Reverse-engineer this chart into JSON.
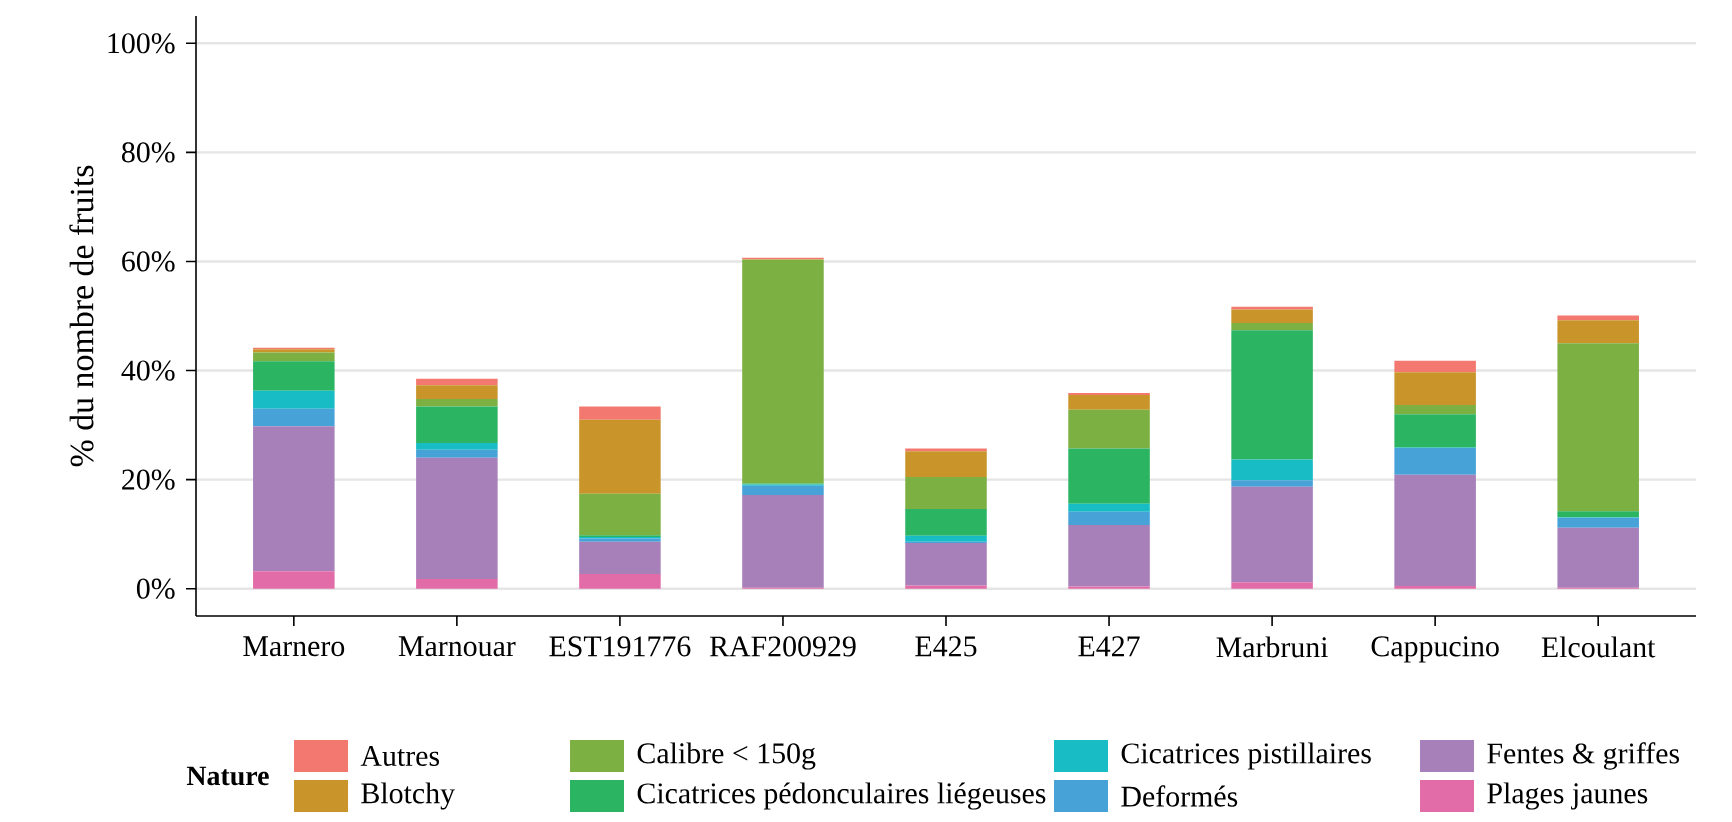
{
  "chart_data": {
    "type": "bar",
    "stacked": true,
    "ylabel": "% du nombre de fruits",
    "legend_title": "Nature",
    "legend": "bottom",
    "grid": "y",
    "categories": [
      "Marnero",
      "Marnouar",
      "EST191776",
      "RAF200929",
      "E425",
      "E427",
      "Marbruni",
      "Cappucino",
      "Elcoulant"
    ],
    "ylim": [
      -5,
      105
    ],
    "yticks": [
      {
        "value": 0,
        "label": "0%"
      },
      {
        "value": 20,
        "label": "20%"
      },
      {
        "value": 40,
        "label": "40%"
      },
      {
        "value": 60,
        "label": "60%"
      },
      {
        "value": 80,
        "label": "80%"
      },
      {
        "value": 100,
        "label": "100%"
      }
    ],
    "series": [
      {
        "name": "Plages jaunes",
        "color": "#e26ca7",
        "values": [
          3.2,
          1.8,
          2.7,
          0.2,
          0.6,
          0.4,
          1.2,
          0.5,
          0.2
        ]
      },
      {
        "name": "Fentes & griffes",
        "color": "#a780ba",
        "values": [
          26.6,
          22.2,
          5.9,
          17.0,
          7.8,
          11.3,
          17.5,
          20.4,
          11.0
        ]
      },
      {
        "name": "Deformés",
        "color": "#47a2d8",
        "values": [
          3.2,
          1.5,
          0.6,
          1.7,
          0.2,
          2.4,
          1.2,
          4.9,
          1.8
        ]
      },
      {
        "name": "Cicatrices pistillaires",
        "color": "#17bcc4",
        "values": [
          3.3,
          1.2,
          0.3,
          0.2,
          1.1,
          1.5,
          3.8,
          0.1,
          0.1
        ]
      },
      {
        "name": "Cicatrices pédonculaires liégeuses",
        "color": "#2bb462",
        "values": [
          5.4,
          6.7,
          0.3,
          0.2,
          4.9,
          10.1,
          23.7,
          6.1,
          1.1
        ]
      },
      {
        "name": "Calibre < 150g",
        "color": "#7db043",
        "values": [
          1.6,
          1.4,
          7.6,
          41.0,
          5.9,
          7.1,
          1.3,
          1.7,
          30.8
        ]
      },
      {
        "name": "Blotchy",
        "color": "#c9952b",
        "values": [
          0.6,
          2.5,
          13.6,
          0.1,
          4.7,
          2.7,
          2.5,
          6.0,
          4.2
        ]
      },
      {
        "name": "Autres",
        "color": "#f27870",
        "values": [
          0.3,
          1.2,
          2.4,
          0.3,
          0.5,
          0.4,
          0.5,
          2.1,
          0.9
        ]
      }
    ]
  }
}
